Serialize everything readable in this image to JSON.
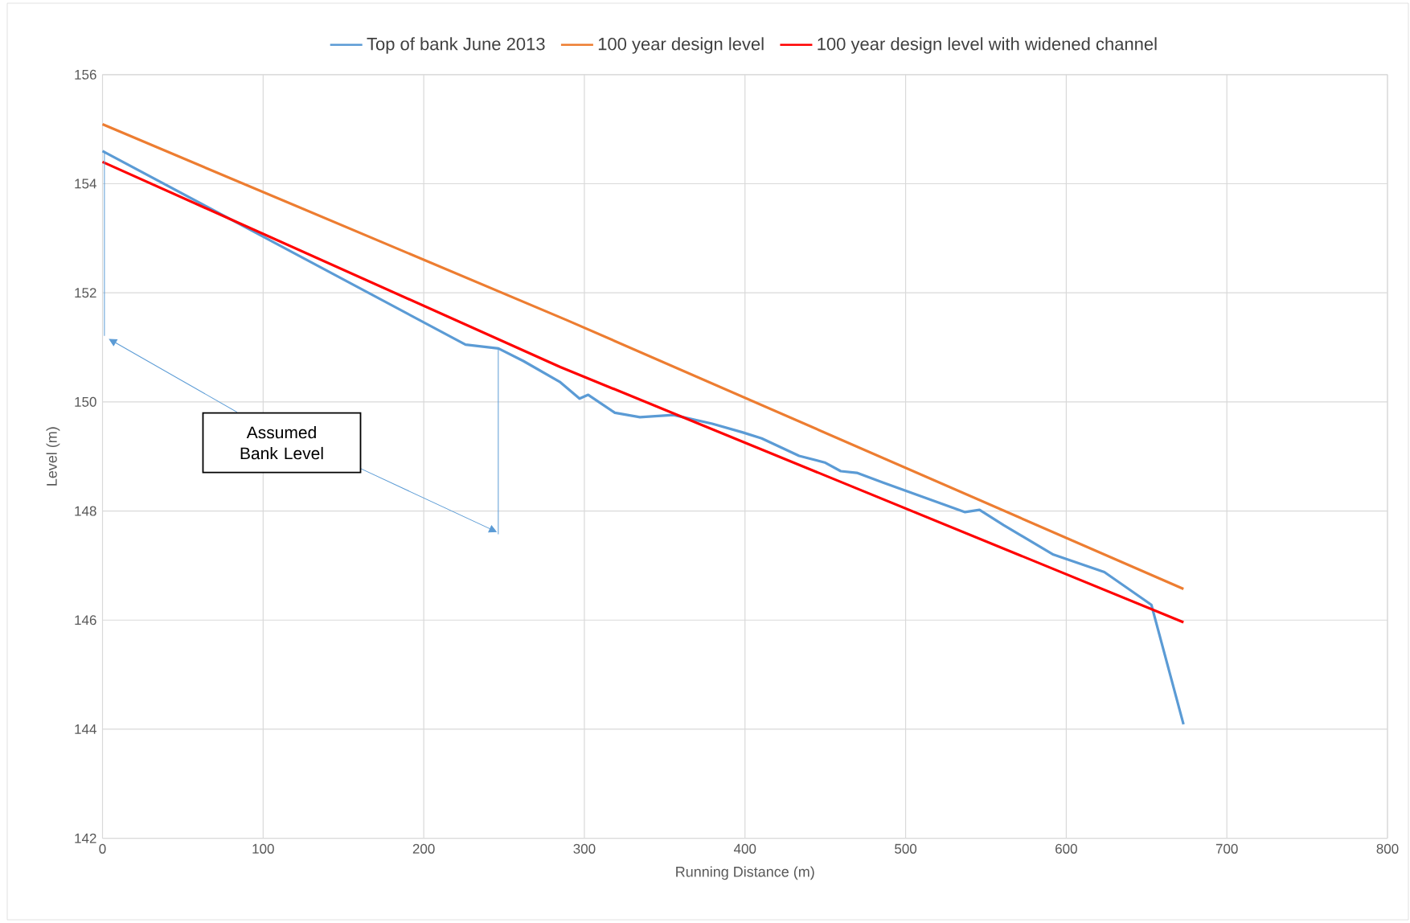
{
  "chart_data": {
    "type": "line",
    "xlabel": "Running Distance (m)",
    "ylabel": "Level (m)",
    "xlim": [
      0,
      800
    ],
    "xticks": [
      0,
      100,
      200,
      300,
      400,
      500,
      600,
      700,
      800
    ],
    "ylim": [
      142,
      156
    ],
    "yticks": [
      142,
      144,
      146,
      148,
      150,
      152,
      154,
      156
    ],
    "grid": true,
    "legend": "top",
    "annotations": [
      "Assumed Bank Level"
    ],
    "series": [
      {
        "name": "Top of bank June 2013",
        "color": "#5b9bd5",
        "x": [
          0,
          226,
          246.5,
          262,
          284.6,
          297,
          302.4,
          319,
          334.6,
          355.4,
          379.6,
          398.7,
          410.4,
          433.7,
          449.6,
          459.6,
          469.6,
          486,
          537,
          546,
          561,
          592,
          623.7,
          653,
          673
        ],
        "values": [
          154.6,
          151.05,
          150.98,
          150.75,
          150.37,
          150.06,
          150.13,
          149.8,
          149.72,
          149.76,
          149.6,
          149.44,
          149.33,
          149.01,
          148.89,
          148.73,
          148.7,
          148.52,
          147.98,
          148.02,
          147.74,
          147.2,
          146.88,
          146.28,
          144.09
        ]
      },
      {
        "name": "100 year design level",
        "color": "#ed7d31",
        "x": [
          0,
          289,
          673
        ],
        "values": [
          155.09,
          151.5,
          146.57
        ]
      },
      {
        "name": "100 year design level with widened channel",
        "color": "#ff0000",
        "x": [
          0,
          285,
          673
        ],
        "values": [
          154.4,
          150.64,
          145.96
        ]
      }
    ]
  }
}
